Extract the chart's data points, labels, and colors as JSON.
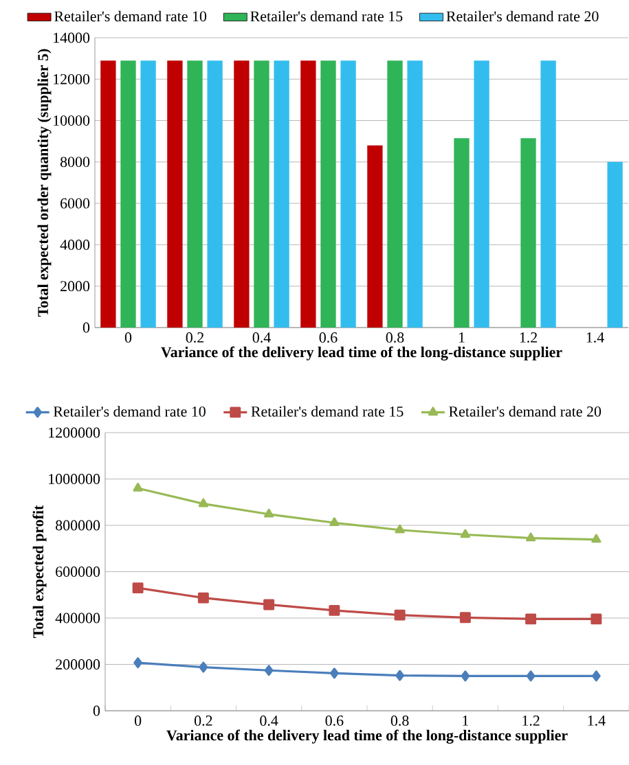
{
  "chart_data": [
    {
      "type": "bar",
      "xlabel": "Variance of the delivery lead time of the long-distance supplier",
      "ylabel": "Total expected order quantity (supplier 5)",
      "categories": [
        "0",
        "0.2",
        "0.4",
        "0.6",
        "0.8",
        "1",
        "1.2",
        "1.4"
      ],
      "series": [
        {
          "name": "Retailer's demand rate 10",
          "color": "#c00000",
          "values": [
            12900,
            12900,
            12900,
            12900,
            8800,
            null,
            null,
            null
          ]
        },
        {
          "name": "Retailer's demand rate 15",
          "color": "#2fb457",
          "values": [
            12900,
            12900,
            12900,
            12900,
            12900,
            9150,
            9150,
            null
          ]
        },
        {
          "name": "Retailer's demand rate 20",
          "color": "#33bdee",
          "values": [
            12900,
            12900,
            12900,
            12900,
            12900,
            12900,
            12900,
            8000
          ]
        }
      ],
      "ylim": [
        0,
        14000
      ],
      "yticks": [
        0,
        2000,
        4000,
        6000,
        8000,
        10000,
        12000,
        14000
      ],
      "grid": "y",
      "legend": "top"
    },
    {
      "type": "line",
      "xlabel": "Variance of the delivery lead time of the long-distance supplier",
      "ylabel": "Total expected profit",
      "categories": [
        "0",
        "0.2",
        "0.4",
        "0.6",
        "0.8",
        "1",
        "1.2",
        "1.4"
      ],
      "series": [
        {
          "name": "Retailer's demand rate 10",
          "color": "#4a7ebb",
          "marker": "diamond",
          "values": [
            207000,
            188000,
            174000,
            162000,
            152000,
            150000,
            150000,
            150000
          ]
        },
        {
          "name": "Retailer's demand rate 15",
          "color": "#be4b48",
          "marker": "square",
          "values": [
            530000,
            487000,
            458000,
            433000,
            413000,
            402000,
            396000,
            396000
          ]
        },
        {
          "name": "Retailer's demand rate 20",
          "color": "#98b954",
          "marker": "triangle",
          "values": [
            960000,
            893000,
            848000,
            811000,
            780000,
            760000,
            745000,
            739000
          ]
        }
      ],
      "ylim": [
        0,
        1200000
      ],
      "yticks": [
        0,
        200000,
        400000,
        600000,
        800000,
        1000000,
        1200000
      ],
      "grid": "y",
      "line_style": "solid",
      "legend": "top"
    }
  ]
}
